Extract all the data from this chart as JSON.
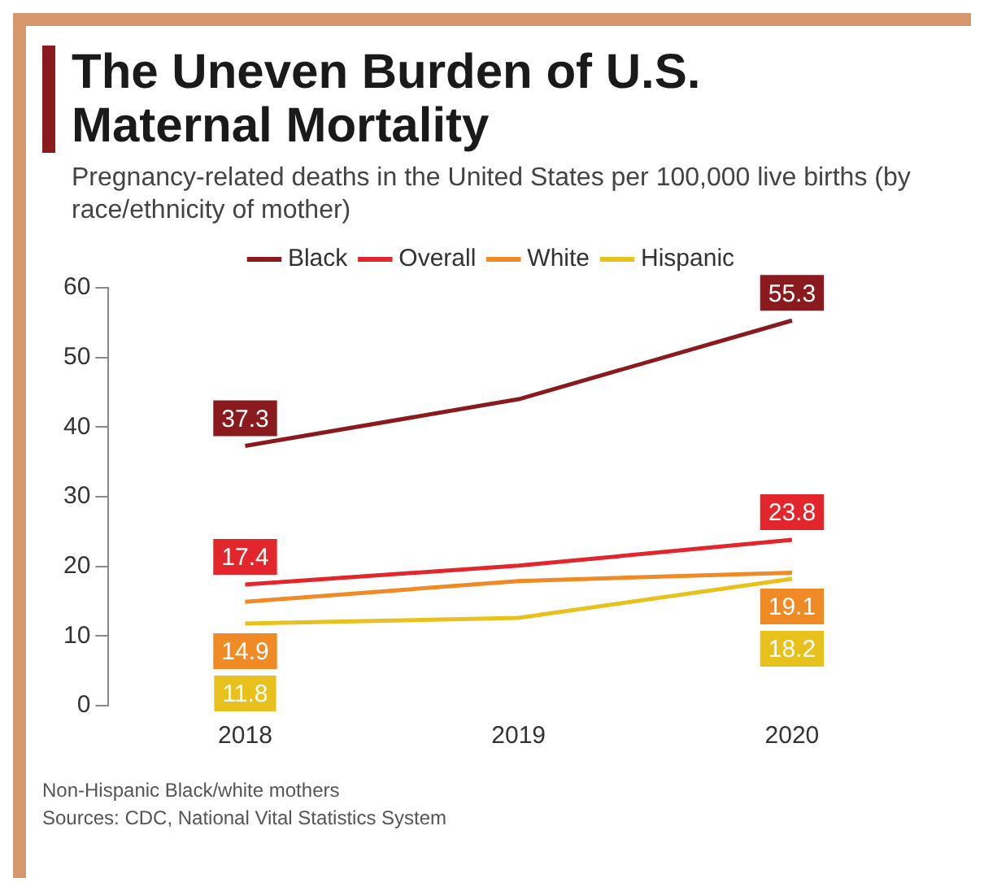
{
  "chart_data": {
    "type": "line",
    "title": "The Uneven Burden of U.S. Maternal Mortality",
    "subtitle": "Pregnancy-related deaths in the United States per 100,000 live births (by race/ethnicity of mother)",
    "categories": [
      "2018",
      "2019",
      "2020"
    ],
    "series": [
      {
        "name": "Black",
        "color": "#8b1a1f",
        "values": [
          37.3,
          44.0,
          55.3
        ],
        "value_labels": [
          "37.3",
          null,
          "55.3"
        ]
      },
      {
        "name": "Overall",
        "color": "#e3262b",
        "values": [
          17.4,
          20.1,
          23.8
        ],
        "value_labels": [
          "17.4",
          null,
          "23.8"
        ]
      },
      {
        "name": "White",
        "color": "#f08a24",
        "values": [
          14.9,
          17.9,
          19.1
        ],
        "value_labels": [
          "14.9",
          null,
          "19.1"
        ]
      },
      {
        "name": "Hispanic",
        "color": "#e8c11c",
        "values": [
          11.8,
          12.6,
          18.2
        ],
        "value_labels": [
          "11.8",
          null,
          "18.2"
        ]
      }
    ],
    "ylim": [
      0,
      60
    ],
    "yticks": [
      0,
      10,
      20,
      30,
      40,
      50,
      60
    ],
    "grid": false,
    "legend": "top",
    "marker": "none",
    "line_style": "solid",
    "annotations": [
      "Non-Hispanic Black/white mothers",
      "Sources: CDC, National Vital Statistics System"
    ]
  }
}
